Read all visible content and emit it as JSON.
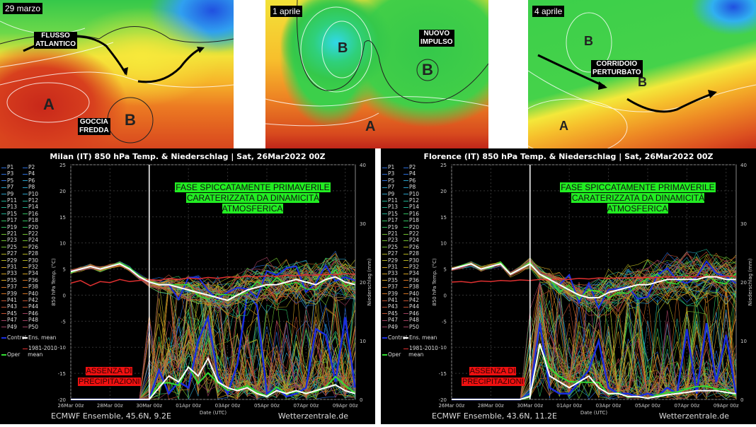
{
  "maps": [
    {
      "date": "29 marzo",
      "labels": [
        [
          "FLUSSO",
          "ATLANTICO"
        ],
        [
          "GOCCIA",
          "FREDDA"
        ]
      ],
      "centers": [
        "A",
        "B"
      ]
    },
    {
      "date": "1 aprile",
      "labels": [
        [
          "NUOVO",
          "IMPULSO"
        ]
      ],
      "centers": [
        "B",
        "B",
        "A"
      ]
    },
    {
      "date": "4 aprile",
      "labels": [
        [
          "CORRIDOIO",
          "PERTURBATO"
        ]
      ],
      "centers": [
        "B",
        "B",
        "A"
      ]
    }
  ],
  "legend": {
    "members": [
      "P1",
      "P2",
      "P3",
      "P4",
      "P5",
      "P6",
      "P7",
      "P8",
      "P9",
      "P10",
      "P11",
      "P12",
      "P13",
      "P14",
      "P15",
      "P16",
      "P17",
      "P18",
      "P19",
      "P20",
      "P21",
      "P22",
      "P23",
      "P24",
      "P25",
      "P26",
      "P27",
      "P28",
      "P29",
      "P30",
      "P31",
      "P32",
      "P33",
      "P34",
      "P35",
      "P36",
      "P37",
      "P38",
      "P39",
      "P40",
      "P41",
      "P42",
      "P43",
      "P44",
      "P45",
      "P46",
      "P47",
      "P48",
      "P49",
      "P50"
    ],
    "control": "Control",
    "ens_mean": "Ens. mean",
    "oper": "Oper",
    "clim": "1981-2010",
    "clim2": "mean"
  },
  "colors": {
    "control": "#1a2ee0",
    "ens_mean": "#ffffff",
    "oper": "#33dd33",
    "clim": "#e03030",
    "member_palette": [
      "#2a6cd8",
      "#2aa0c8",
      "#20b090",
      "#30c060",
      "#70c030",
      "#b0b020",
      "#d0a020",
      "#d07020",
      "#c05030",
      "#a04060"
    ]
  },
  "chart_data": [
    {
      "type": "line",
      "title": "Milan  (IT)  850 hPa Temp. & Niederschlag | Sat, 26Mar2022 00Z",
      "ylabel": "850 hPa Temp. (°C)",
      "y2label": "Niederschlag (mm)",
      "xlabel": "Date (UTC)",
      "ylim": [
        -20,
        25
      ],
      "y2lim": [
        0,
        40
      ],
      "yticks": [
        -20,
        -15,
        -10,
        -5,
        0,
        5,
        10,
        15,
        20,
        25
      ],
      "y2ticks": [
        0,
        10,
        20,
        30,
        40
      ],
      "xticks": [
        "26Mar 00z",
        "28Mar 00z",
        "30Mar 00z",
        "01Apr 00z",
        "03Apr 00z",
        "05Apr 00z",
        "07Apr 00z",
        "09Apr 00z"
      ],
      "x_days": [
        0,
        0.5,
        1,
        1.5,
        2,
        2.5,
        3,
        3.5,
        4,
        4.5,
        5,
        5.5,
        6,
        6.5,
        7,
        7.5,
        8,
        8.5,
        9,
        9.5,
        10,
        10.5,
        11,
        11.5,
        12,
        12.5,
        13,
        13.5,
        14,
        14.5
      ],
      "marker_day": 4,
      "temp_ens_mean": [
        4.5,
        5,
        5.5,
        5,
        5.5,
        6,
        5,
        3.5,
        2.5,
        2,
        2,
        1.5,
        1,
        0.5,
        0,
        -0.5,
        -1,
        0,
        1,
        1.5,
        2,
        2,
        2.5,
        3,
        2.5,
        2,
        3,
        3.5,
        2.5,
        2
      ],
      "temp_clim_mean": [
        2.3,
        2.8,
        1.8,
        2.6,
        2.4,
        3,
        2.6,
        2.8,
        3,
        2.8,
        3.2,
        3,
        3.3,
        3.1,
        3.4,
        3.2,
        3.5,
        3.4,
        3.6,
        3.5,
        3.7,
        3.6,
        3.8,
        3.7,
        3.9,
        3.8,
        4,
        3.9,
        4.1,
        4
      ],
      "precip_ens_mean": [
        0,
        0,
        0,
        0,
        0,
        0,
        0,
        0,
        0,
        2,
        4,
        3,
        5.5,
        4,
        7,
        3,
        2,
        1.5,
        2,
        1,
        0.5,
        1.5,
        1,
        1.5,
        1,
        1.5,
        2,
        2.5,
        1.5,
        1
      ],
      "precip_control": [
        0,
        0,
        0,
        0,
        0,
        0,
        0,
        0,
        0,
        5,
        1,
        3,
        2,
        10,
        14,
        4,
        1,
        6,
        18,
        16,
        1,
        2,
        0.5,
        1,
        2,
        12,
        11,
        3,
        14,
        2
      ],
      "spread_max": 5,
      "annot_green": [
        "FASE SPICCATAMENTE PRIMAVERILE",
        "CARATERIZZATA DA DINAMICITÀ ATMOSFERICA"
      ],
      "annot_red": [
        "ASSENZA DI",
        "PRECIPITAZIONI"
      ],
      "footer_left": "ECMWF Ensemble, 45.6N, 9.2E",
      "footer_right": "Wetterzentrale.de"
    },
    {
      "type": "line",
      "title": "Florence  (IT)  850 hPa Temp. & Niederschlag | Sat, 26Mar2022 00Z",
      "ylabel": "850 hPa Temp. (°C)",
      "y2label": "Niederschlag (mm)",
      "xlabel": "Date (UTC)",
      "ylim": [
        -20,
        25
      ],
      "y2lim": [
        0,
        40
      ],
      "yticks": [
        -20,
        -15,
        -10,
        -5,
        0,
        5,
        10,
        15,
        20,
        25
      ],
      "y2ticks": [
        0,
        10,
        20,
        30,
        40
      ],
      "xticks": [
        "26Mar 00z",
        "28Mar 00z",
        "30Mar 00z",
        "01Apr 00z",
        "03Apr 00z",
        "05Apr 00z",
        "07Apr 00z",
        "09Apr 00z"
      ],
      "x_days": [
        0,
        0.5,
        1,
        1.5,
        2,
        2.5,
        3,
        3.5,
        4,
        4.5,
        5,
        5.5,
        6,
        6.5,
        7,
        7.5,
        8,
        8.5,
        9,
        9.5,
        10,
        10.5,
        11,
        11.5,
        12,
        12.5,
        13,
        13.5,
        14,
        14.5
      ],
      "marker_day": 4,
      "temp_ens_mean": [
        5,
        5.5,
        6,
        5,
        5.5,
        6,
        4,
        5,
        6,
        4,
        3,
        2,
        1,
        0,
        -0.5,
        -0.5,
        0.5,
        1,
        1.5,
        2,
        2,
        2.5,
        3,
        3,
        3,
        3,
        3.5,
        3.5,
        3,
        3
      ],
      "temp_clim_mean": [
        2.5,
        2.6,
        2.4,
        2.7,
        2.6,
        2.8,
        2.7,
        2.9,
        2.8,
        3,
        2.9,
        3.1,
        3,
        3.2,
        3.1,
        3.3,
        3.2,
        3.3,
        3.3,
        3.4,
        3.4,
        3.4,
        3.5,
        3.5,
        3.5,
        3.5,
        3.6,
        3.6,
        3.6,
        3.6
      ],
      "precip_ens_mean": [
        0,
        0,
        0,
        0,
        0,
        0,
        0,
        0,
        0.5,
        9.5,
        4,
        3,
        2,
        3,
        4,
        2,
        1,
        1,
        0.5,
        0.5,
        0.2,
        0.5,
        0.8,
        1,
        1.2,
        1.5,
        1.5,
        1.5,
        1.2,
        1
      ],
      "precip_control": [
        0,
        0,
        0,
        0,
        0,
        0,
        0,
        0,
        1,
        13,
        2,
        1,
        1,
        3,
        5,
        10,
        2,
        1,
        1,
        0.5,
        1,
        0.5,
        2,
        1,
        12,
        1,
        13,
        3,
        11,
        1
      ],
      "spread_max": 5,
      "annot_green": [
        "FASE SPICCATAMENTE PRIMAVERILE",
        "CARATERIZZATA DA DINAMICITÀ ATMOSFERICA"
      ],
      "annot_red": [
        "ASSENZA DI",
        "PRECIPITAZIONI"
      ],
      "footer_left": "ECMWF Ensemble, 43.6N, 11.2E",
      "footer_right": "Wetterzentrale.de"
    }
  ]
}
